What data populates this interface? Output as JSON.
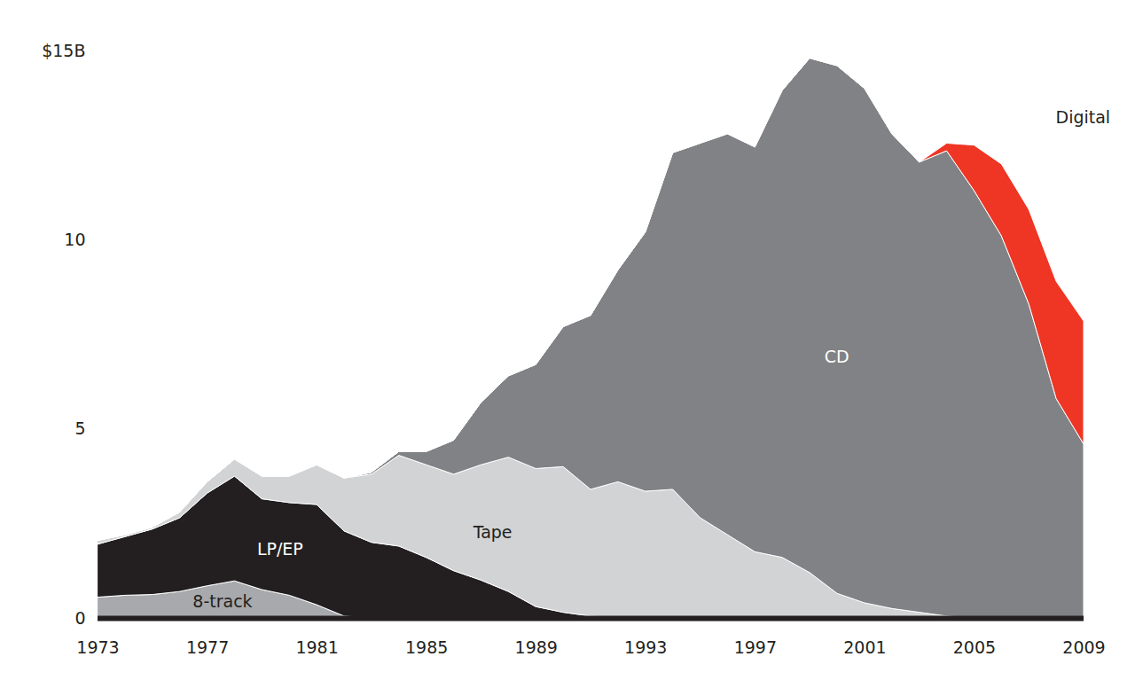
{
  "chart_data": {
    "type": "area",
    "stacked": true,
    "grid": false,
    "x": [
      1973,
      1974,
      1975,
      1976,
      1977,
      1978,
      1979,
      1980,
      1981,
      1982,
      1983,
      1984,
      1985,
      1986,
      1987,
      1988,
      1989,
      1990,
      1991,
      1992,
      1993,
      1994,
      1995,
      1996,
      1997,
      1998,
      1999,
      2000,
      2001,
      2002,
      2003,
      2004,
      2005,
      2006,
      2007,
      2008,
      2009
    ],
    "xlim": [
      1973,
      2009
    ],
    "xticks": [
      1973,
      1977,
      1981,
      1985,
      1989,
      1993,
      1997,
      2001,
      2005,
      2009
    ],
    "ylim": [
      0,
      15
    ],
    "yticks": [
      0,
      5,
      10,
      {
        "value": 15,
        "label": "$15B"
      }
    ],
    "series": [
      {
        "name": "8-track",
        "color": "#a7a9ac",
        "values": [
          0.55,
          0.6,
          0.62,
          0.7,
          0.85,
          0.98,
          0.75,
          0.6,
          0.35,
          0.05,
          0,
          0,
          0,
          0,
          0,
          0,
          0,
          0,
          0,
          0,
          0,
          0,
          0,
          0,
          0,
          0,
          0,
          0,
          0,
          0,
          0,
          0,
          0,
          0,
          0,
          0,
          0
        ]
      },
      {
        "name": "LP/EP",
        "color": "#231f20",
        "values": [
          1.4,
          1.55,
          1.73,
          1.95,
          2.45,
          2.77,
          2.4,
          2.45,
          2.65,
          2.25,
          2.0,
          1.9,
          1.6,
          1.25,
          1.0,
          0.7,
          0.3,
          0.15,
          0.05,
          0,
          0,
          0,
          0,
          0,
          0,
          0,
          0,
          0,
          0,
          0,
          0,
          0,
          0,
          0,
          0,
          0,
          0
        ]
      },
      {
        "name": "Tape",
        "color": "#d1d3d4",
        "values": [
          0.1,
          0.05,
          0.05,
          0.15,
          0.3,
          0.45,
          0.6,
          0.7,
          1.05,
          1.4,
          1.8,
          2.4,
          2.45,
          2.55,
          3.05,
          3.55,
          3.65,
          3.85,
          3.35,
          3.6,
          3.35,
          3.4,
          2.65,
          2.2,
          1.75,
          1.6,
          1.2,
          0.65,
          0.4,
          0.25,
          0.15,
          0.05,
          0,
          0,
          0,
          0,
          0
        ]
      },
      {
        "name": "CD",
        "color": "#808285",
        "values": [
          0,
          0,
          0,
          0,
          0,
          0,
          0,
          0,
          0,
          0,
          0.05,
          0.1,
          0.35,
          0.9,
          1.65,
          2.15,
          2.75,
          3.7,
          4.6,
          5.6,
          6.85,
          8.9,
          9.9,
          10.6,
          10.7,
          12.35,
          13.6,
          13.95,
          13.6,
          12.55,
          11.9,
          12.3,
          11.3,
          10.1,
          8.3,
          5.8,
          4.6
        ]
      },
      {
        "name": "Digital",
        "color": "#ef3524",
        "values": [
          0,
          0,
          0,
          0,
          0,
          0,
          0,
          0,
          0,
          0,
          0,
          0,
          0,
          0,
          0,
          0,
          0,
          0,
          0,
          0,
          0,
          0,
          0,
          0,
          0,
          0,
          0,
          0,
          0,
          0,
          0,
          0.2,
          1.2,
          1.9,
          2.5,
          3.1,
          3.25
        ]
      }
    ]
  }
}
